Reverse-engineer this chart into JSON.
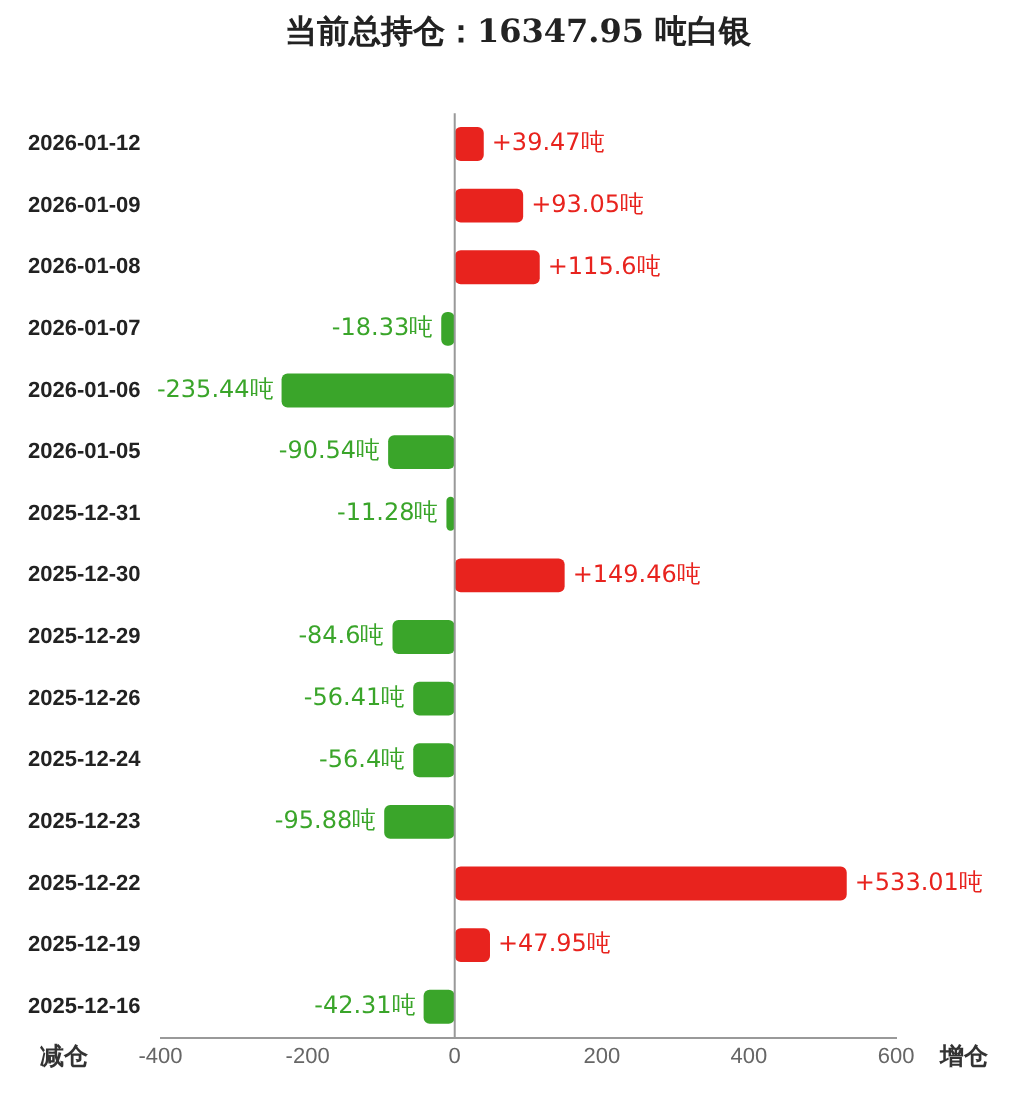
{
  "chart_data": {
    "type": "bar",
    "orientation": "horizontal",
    "title": "当前总持仓：16347.95 吨白银",
    "categories": [
      "2026-01-12",
      "2026-01-09",
      "2026-01-08",
      "2026-01-07",
      "2026-01-06",
      "2026-01-05",
      "2025-12-31",
      "2025-12-30",
      "2025-12-29",
      "2025-12-26",
      "2025-12-24",
      "2025-12-23",
      "2025-12-22",
      "2025-12-19",
      "2025-12-16"
    ],
    "values": [
      39.47,
      93.05,
      115.6,
      -18.33,
      -235.44,
      -90.54,
      -11.28,
      149.46,
      -84.6,
      -56.41,
      -56.4,
      -95.88,
      533.01,
      47.95,
      -42.31
    ],
    "value_labels": [
      "+39.47吨",
      "+93.05吨",
      "+115.6吨",
      "-18.33吨",
      "-235.44吨",
      "-90.54吨",
      "-11.28吨",
      "+149.46吨",
      "-84.6吨",
      "-56.41吨",
      "-56.4吨",
      "-95.88吨",
      "+533.01吨",
      "+47.95吨",
      "-42.31吨"
    ],
    "colors": [
      "#e8231e",
      "#e8231e",
      "#e8231e",
      "#3aa52a",
      "#3aa52a",
      "#3aa52a",
      "#3aa52a",
      "#e8231e",
      "#3aa52a",
      "#3aa52a",
      "#3aa52a",
      "#3aa52a",
      "#e8231e",
      "#e8231e",
      "#3aa52a"
    ],
    "xlim": [
      -400,
      600
    ],
    "xticks": [
      -400,
      -200,
      0,
      200,
      400,
      600
    ],
    "annotations": [
      "减仓",
      "增仓"
    ],
    "ref_lines": [
      {
        "axis": "x",
        "value": 0,
        "color": "#999999"
      }
    ],
    "grid": false,
    "legend": false
  }
}
